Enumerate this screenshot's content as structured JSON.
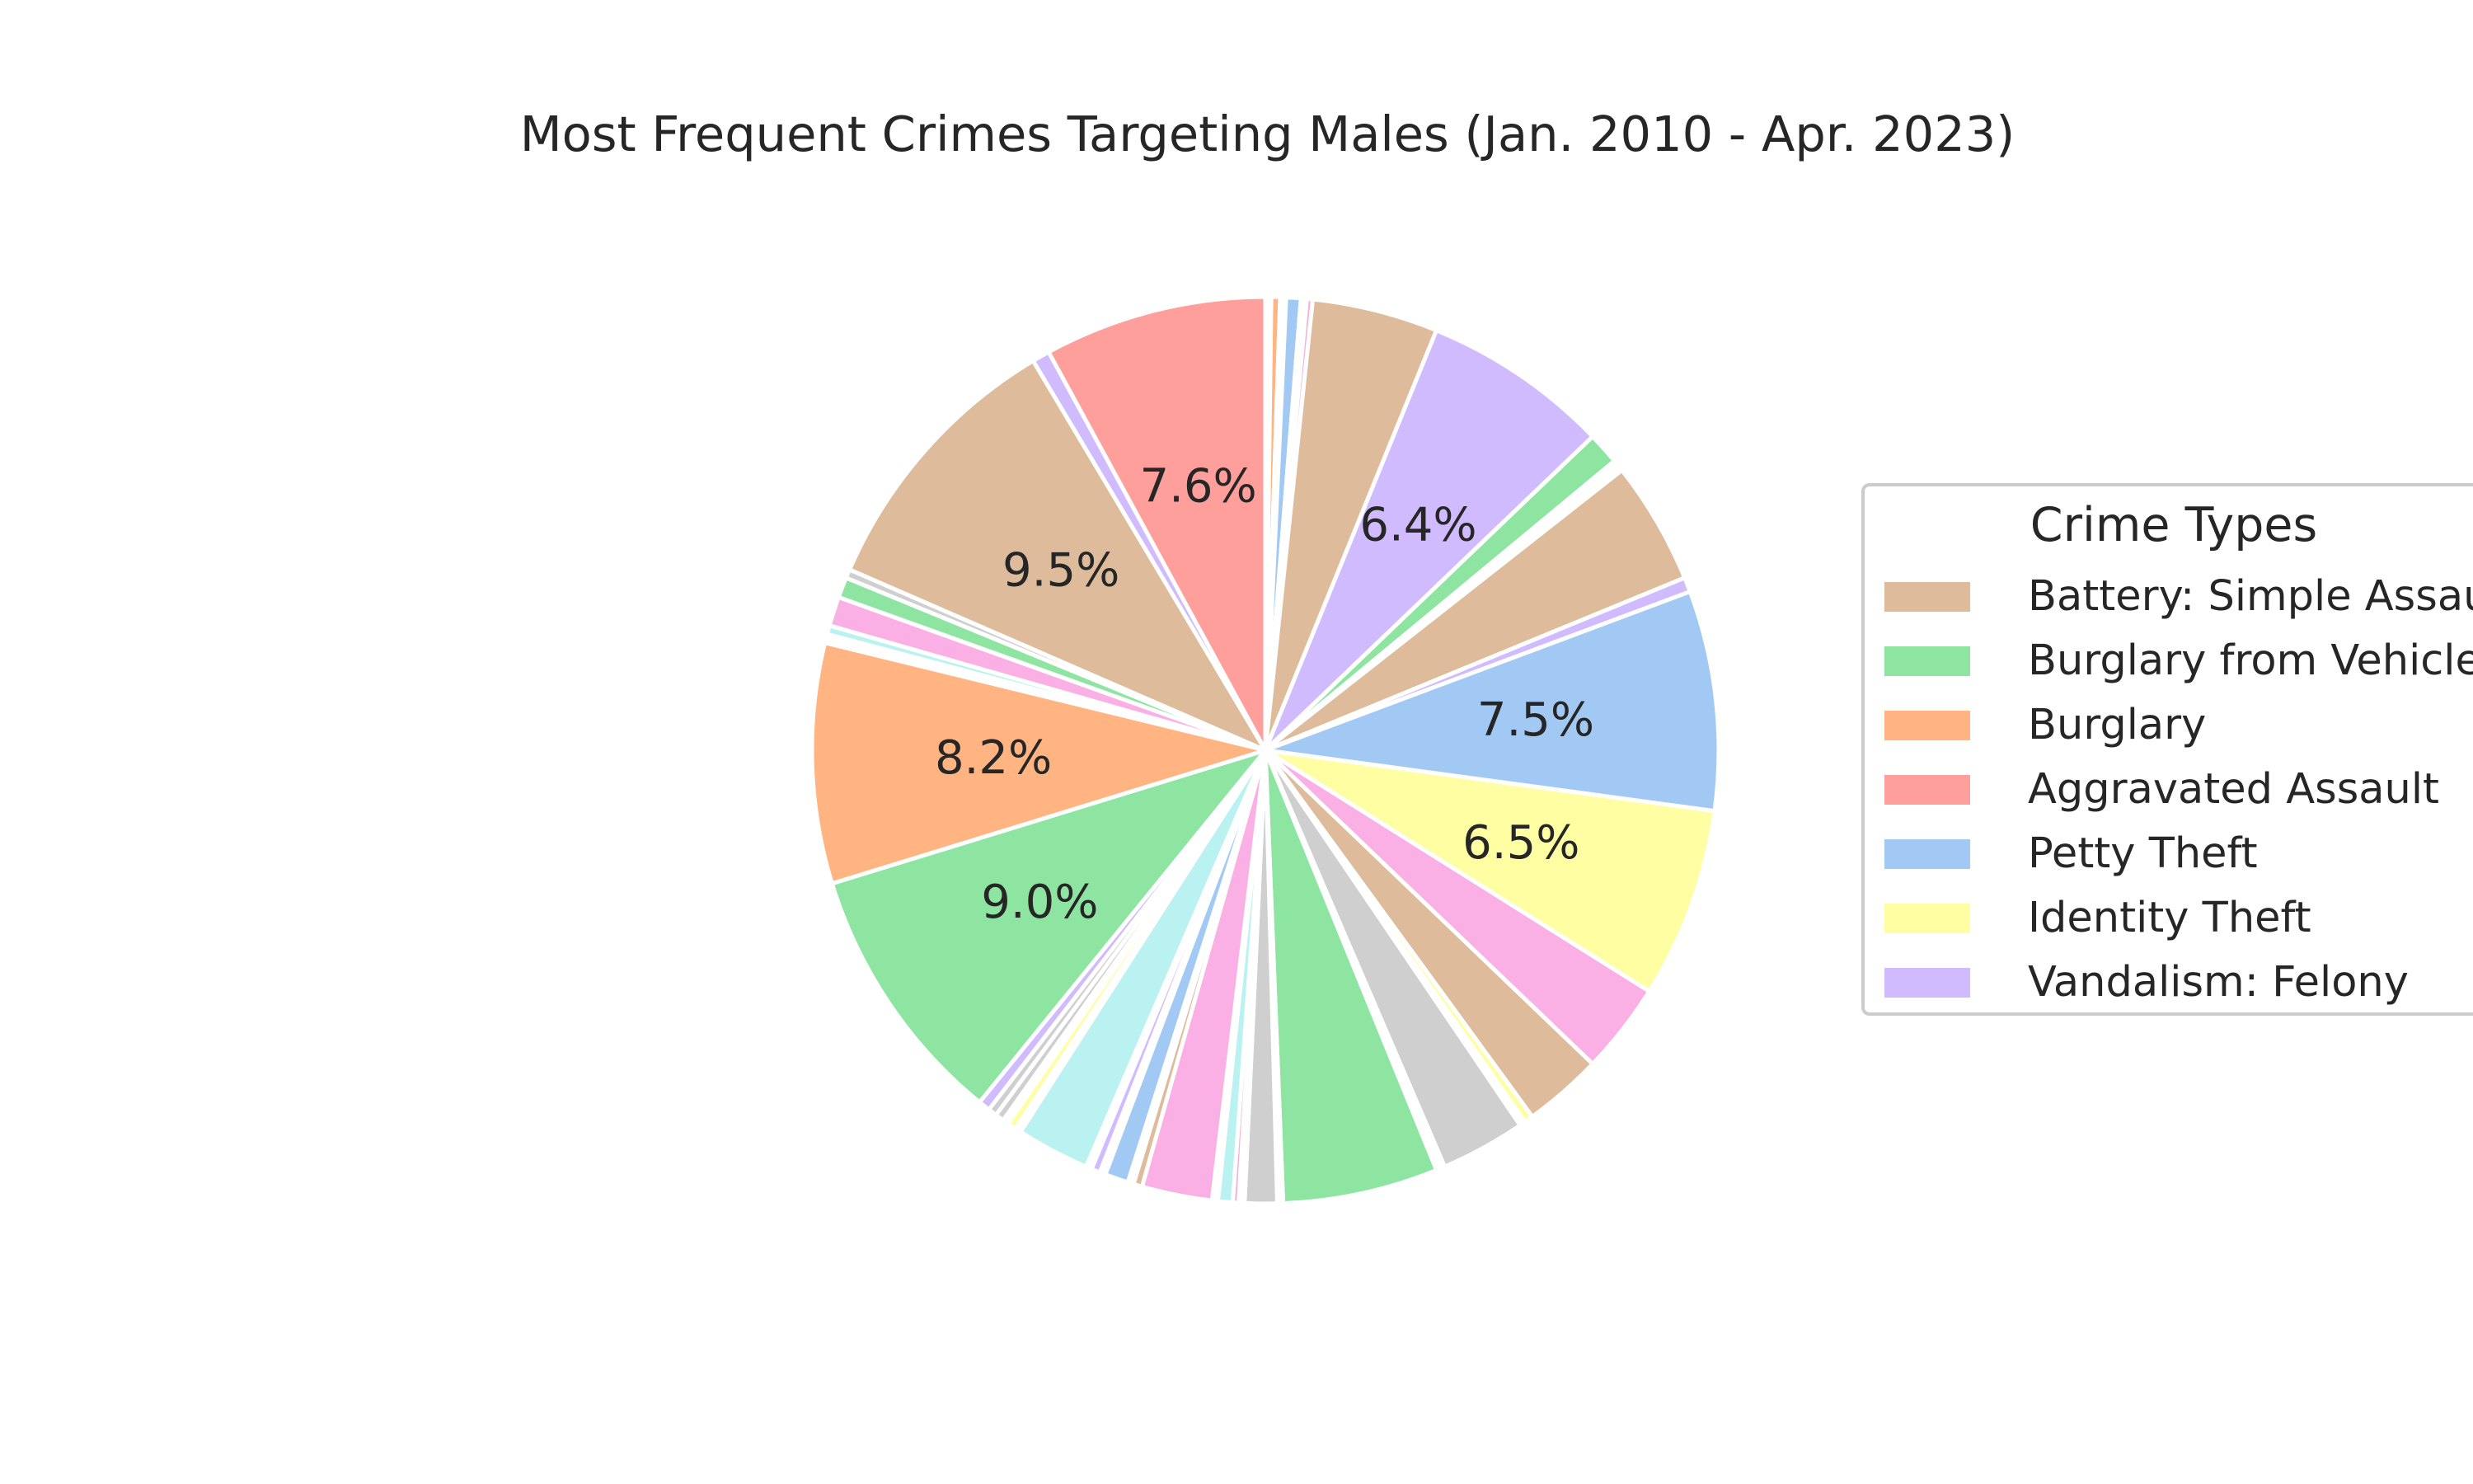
{
  "chart_data": {
    "type": "pie",
    "title": "Most Frequent Crimes Targeting Males (Jan. 2010 - Apr. 2023)",
    "start_angle_deg": 90,
    "direction": "clockwise",
    "slices": [
      {
        "value": 0.2,
        "label": "",
        "color": "#ffffff"
      },
      {
        "value": 0.3,
        "label": "",
        "color": "#ffb482"
      },
      {
        "value": 0.2,
        "label": "",
        "color": "#ffffff"
      },
      {
        "value": 0.5,
        "label": "",
        "color": "#a1c9f4"
      },
      {
        "value": 0.2,
        "label": "",
        "color": "#ffffff"
      },
      {
        "value": 0.2,
        "label": "",
        "color": "#f0b3d7"
      },
      {
        "value": 4.3,
        "label": "",
        "color": "#debb9b"
      },
      {
        "value": 6.4,
        "label": "6.4%",
        "color": "#d0bbff"
      },
      {
        "value": 1.1,
        "label": "",
        "color": "#8de5a1"
      },
      {
        "value": 0.4,
        "label": "",
        "color": "#ffffff"
      },
      {
        "value": 4.2,
        "label": "",
        "color": "#debb9b"
      },
      {
        "value": 0.5,
        "label": "",
        "color": "#d0bbff"
      },
      {
        "value": 7.5,
        "label": "7.5%",
        "color": "#a1c9f4"
      },
      {
        "value": 6.5,
        "label": "6.5%",
        "color": "#fffea3"
      },
      {
        "value": 3.1,
        "label": "",
        "color": "#fab0e4"
      },
      {
        "value": 2.7,
        "label": "",
        "color": "#debb9b"
      },
      {
        "value": 0.3,
        "label": "",
        "color": "#fffea3"
      },
      {
        "value": 0.2,
        "label": "",
        "color": "#ffffff"
      },
      {
        "value": 2.9,
        "label": "",
        "color": "#cfcfcf"
      },
      {
        "value": 0.3,
        "label": "",
        "color": "#ffffff"
      },
      {
        "value": 5.3,
        "label": "",
        "color": "#8de5a1"
      },
      {
        "value": 0.2,
        "label": "",
        "color": "#ffffff"
      },
      {
        "value": 1.1,
        "label": "",
        "color": "#cfcfcf"
      },
      {
        "value": 0.2,
        "label": "",
        "color": "#ffffff"
      },
      {
        "value": 0.2,
        "label": "",
        "color": "#f0b3d7"
      },
      {
        "value": 0.5,
        "label": "",
        "color": "#b9f2f0"
      },
      {
        "value": 0.2,
        "label": "",
        "color": "#ffffff"
      },
      {
        "value": 2.4,
        "label": "",
        "color": "#fab0e4"
      },
      {
        "value": 0.3,
        "label": "",
        "color": "#debb9b"
      },
      {
        "value": 0.2,
        "label": "",
        "color": "#ffffff"
      },
      {
        "value": 0.8,
        "label": "",
        "color": "#a1c9f4"
      },
      {
        "value": 0.2,
        "label": "",
        "color": "#ffffff"
      },
      {
        "value": 0.3,
        "label": "",
        "color": "#d0bbff"
      },
      {
        "value": 0.2,
        "label": "",
        "color": "#ffffff"
      },
      {
        "value": 2.5,
        "label": "",
        "color": "#b9f2f0"
      },
      {
        "value": 0.2,
        "label": "",
        "color": "#ffffff"
      },
      {
        "value": 0.3,
        "label": "",
        "color": "#fffea3"
      },
      {
        "value": 0.2,
        "label": "",
        "color": "#ffffff"
      },
      {
        "value": 0.3,
        "label": "",
        "color": "#cfcfcf"
      },
      {
        "value": 0.3,
        "label": "",
        "color": "#cfcfcf"
      },
      {
        "value": 0.4,
        "label": "",
        "color": "#d0bbff"
      },
      {
        "value": 9.0,
        "label": "9.0%",
        "color": "#8de5a1"
      },
      {
        "value": 8.2,
        "label": "8.2%",
        "color": "#ffb482"
      },
      {
        "value": 0.3,
        "label": "",
        "color": "#ffffff"
      },
      {
        "value": 0.3,
        "label": "",
        "color": "#b9f2f0"
      },
      {
        "value": 1.0,
        "label": "",
        "color": "#fab0e4"
      },
      {
        "value": 0.7,
        "label": "",
        "color": "#8de5a1"
      },
      {
        "value": 0.3,
        "label": "",
        "color": "#cfcfcf"
      },
      {
        "value": 9.5,
        "label": "9.5%",
        "color": "#debb9b"
      },
      {
        "value": 0.6,
        "label": "",
        "color": "#d0bbff"
      },
      {
        "value": 7.6,
        "label": "7.6%",
        "color": "#ff9f9b"
      }
    ],
    "legend": {
      "title": "Crime Types",
      "placement": "right",
      "entries": [
        {
          "label": "Battery: Simple Assault",
          "color": "#debb9b"
        },
        {
          "label": "Burglary from Vehicle",
          "color": "#8de5a1"
        },
        {
          "label": "Burglary",
          "color": "#ffb482"
        },
        {
          "label": "Aggravated Assault",
          "color": "#ff9f9b"
        },
        {
          "label": "Petty Theft",
          "color": "#a1c9f4"
        },
        {
          "label": "Identity Theft",
          "color": "#fffea3"
        },
        {
          "label": "Vandalism: Felony",
          "color": "#d0bbff"
        }
      ]
    }
  }
}
